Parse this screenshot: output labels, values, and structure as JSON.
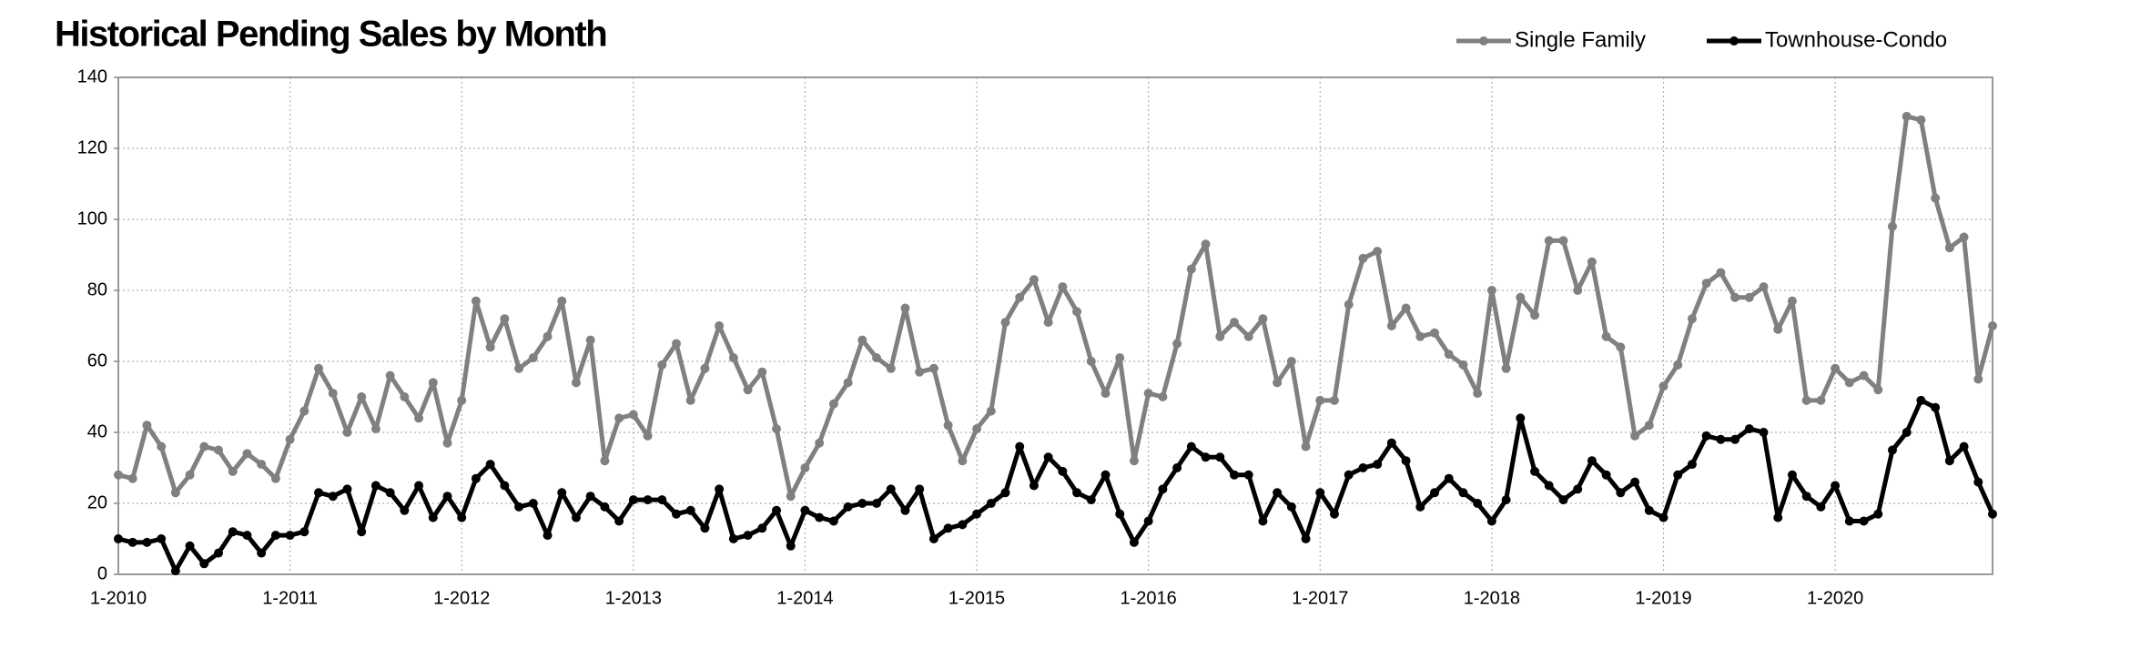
{
  "chart_data": {
    "type": "line",
    "title": "Historical Pending Sales by Month",
    "categories": [
      "1-2010",
      null,
      null,
      null,
      null,
      null,
      null,
      null,
      null,
      null,
      null,
      null,
      "1-2011",
      null,
      null,
      null,
      null,
      null,
      null,
      null,
      null,
      null,
      null,
      null,
      "1-2012",
      null,
      null,
      null,
      null,
      null,
      null,
      null,
      null,
      null,
      null,
      null,
      "1-2013",
      null,
      null,
      null,
      null,
      null,
      null,
      null,
      null,
      null,
      null,
      null,
      "1-2014",
      null,
      null,
      null,
      null,
      null,
      null,
      null,
      null,
      null,
      null,
      null,
      "1-2015",
      null,
      null,
      null,
      null,
      null,
      null,
      null,
      null,
      null,
      null,
      null,
      "1-2016",
      null,
      null,
      null,
      null,
      null,
      null,
      null,
      null,
      null,
      null,
      null,
      "1-2017",
      null,
      null,
      null,
      null,
      null,
      null,
      null,
      null,
      null,
      null,
      null,
      "1-2018",
      null,
      null,
      null,
      null,
      null,
      null,
      null,
      null,
      null,
      null,
      null,
      "1-2019",
      null,
      null,
      null,
      null,
      null,
      null,
      null,
      null,
      null,
      null,
      null,
      "1-2020",
      null,
      null,
      null,
      null,
      null,
      null,
      null,
      null,
      null,
      null,
      null
    ],
    "series": [
      {
        "name": "Single Family",
        "color": "#808080",
        "values": [
          28,
          27,
          42,
          36,
          23,
          28,
          36,
          35,
          29,
          34,
          31,
          27,
          38,
          46,
          58,
          51,
          40,
          50,
          41,
          56,
          50,
          44,
          54,
          37,
          49,
          77,
          64,
          72,
          58,
          61,
          67,
          77,
          54,
          66,
          32,
          44,
          45,
          39,
          59,
          65,
          49,
          58,
          70,
          61,
          52,
          57,
          41,
          22,
          30,
          37,
          48,
          54,
          66,
          61,
          58,
          75,
          57,
          58,
          42,
          32,
          41,
          46,
          71,
          78,
          83,
          71,
          81,
          74,
          60,
          51,
          61,
          32,
          51,
          50,
          65,
          86,
          93,
          67,
          71,
          67,
          72,
          54,
          60,
          36,
          49,
          49,
          76,
          89,
          91,
          70,
          75,
          67,
          68,
          62,
          59,
          51,
          80,
          58,
          78,
          73,
          94,
          94,
          80,
          88,
          67,
          64,
          39,
          42,
          53,
          59,
          72,
          82,
          85,
          78,
          78,
          81,
          69,
          77,
          49,
          49,
          58,
          54,
          56,
          52,
          98,
          129,
          128,
          106,
          92,
          95,
          55,
          70
        ]
      },
      {
        "name": "Townhouse-Condo",
        "color": "#000000",
        "values": [
          10,
          9,
          9,
          10,
          1,
          8,
          3,
          6,
          12,
          11,
          6,
          11,
          11,
          12,
          23,
          22,
          24,
          12,
          25,
          23,
          18,
          25,
          16,
          22,
          16,
          27,
          31,
          25,
          19,
          20,
          11,
          23,
          16,
          22,
          19,
          15,
          21,
          21,
          21,
          17,
          18,
          13,
          24,
          10,
          11,
          13,
          18,
          8,
          18,
          16,
          15,
          19,
          20,
          20,
          24,
          18,
          24,
          10,
          13,
          14,
          17,
          20,
          23,
          36,
          25,
          33,
          29,
          23,
          21,
          28,
          17,
          9,
          15,
          24,
          30,
          36,
          33,
          33,
          28,
          28,
          15,
          23,
          19,
          10,
          23,
          17,
          28,
          30,
          31,
          37,
          32,
          19,
          23,
          27,
          23,
          20,
          15,
          21,
          44,
          29,
          25,
          21,
          24,
          32,
          28,
          23,
          26,
          18,
          16,
          28,
          31,
          39,
          38,
          38,
          41,
          40,
          16,
          28,
          22,
          19,
          25,
          15,
          15,
          17,
          35,
          40,
          49,
          47,
          32,
          36,
          26,
          17
        ]
      }
    ],
    "ylim": [
      0,
      140
    ],
    "yticks": [
      0,
      20,
      40,
      60,
      80,
      100,
      120,
      140
    ],
    "grid": true,
    "legend": "top-right"
  }
}
